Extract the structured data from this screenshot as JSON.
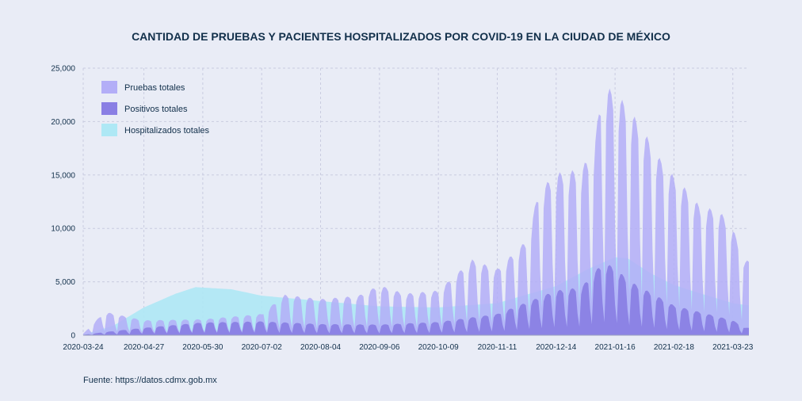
{
  "page": {
    "title": "CANTIDAD DE PRUEBAS Y PACIENTES HOSPITALIZADOS POR COVID-19 EN LA CIUDAD DE MÉXICO",
    "source": "Fuente: https://datos.cdmx.gob.mx"
  },
  "colors": {
    "background": "#e9ecf6",
    "grid": "#c9cbe0",
    "pruebas": "#b3aef7",
    "positivos": "#8a7fe4",
    "hospitalizados": "#aee8f5",
    "text": "#12304b"
  },
  "chart_data": {
    "type": "area",
    "title": "CANTIDAD DE PRUEBAS Y PACIENTES HOSPITALIZADOS POR COVID-19 EN LA CIUDAD DE MÉXICO",
    "xlabel": "",
    "ylabel": "",
    "x_range": [
      "2020-03-24",
      "2021-04-01"
    ],
    "ylim": [
      0,
      25000
    ],
    "grid": true,
    "legend_position": "top-left",
    "x_ticks": [
      "2020-03-24",
      "2020-04-27",
      "2020-05-30",
      "2020-07-02",
      "2020-08-04",
      "2020-09-06",
      "2020-10-09",
      "2020-11-11",
      "2020-12-14",
      "2021-01-16",
      "2021-02-18",
      "2021-03-23"
    ],
    "y_ticks": [
      0,
      5000,
      10000,
      15000,
      20000,
      25000
    ],
    "y_tick_labels": [
      "0",
      "5,000",
      "10,000",
      "15,000",
      "20,000",
      "25,000"
    ],
    "weekly_pattern": "values are daily; weekday peaks and weekend lows",
    "series": [
      {
        "name": "Pruebas totales",
        "color": "#b3aef7",
        "weekly_peaks": [
          {
            "date": "2020-03-24",
            "value": 150
          },
          {
            "date": "2020-04-05",
            "value": 2200
          },
          {
            "date": "2020-04-27",
            "value": 1400
          },
          {
            "date": "2020-05-30",
            "value": 1500
          },
          {
            "date": "2020-07-02",
            "value": 2000
          },
          {
            "date": "2020-07-15",
            "value": 3800
          },
          {
            "date": "2020-08-04",
            "value": 3400
          },
          {
            "date": "2020-08-25",
            "value": 3700
          },
          {
            "date": "2020-09-06",
            "value": 4700
          },
          {
            "date": "2020-09-20",
            "value": 3900
          },
          {
            "date": "2020-10-09",
            "value": 4200
          },
          {
            "date": "2020-10-28",
            "value": 7100
          },
          {
            "date": "2020-11-11",
            "value": 6200
          },
          {
            "date": "2020-11-28",
            "value": 9000
          },
          {
            "date": "2020-12-04",
            "value": 13500
          },
          {
            "date": "2020-12-14",
            "value": 15200
          },
          {
            "date": "2020-12-28",
            "value": 15600
          },
          {
            "date": "2021-01-04",
            "value": 17500
          },
          {
            "date": "2021-01-09",
            "value": 23500
          },
          {
            "date": "2021-01-16",
            "value": 22800
          },
          {
            "date": "2021-01-23",
            "value": 21500
          },
          {
            "date": "2021-02-01",
            "value": 19200
          },
          {
            "date": "2021-02-10",
            "value": 16600
          },
          {
            "date": "2021-02-18",
            "value": 14900
          },
          {
            "date": "2021-02-26",
            "value": 13500
          },
          {
            "date": "2021-03-05",
            "value": 12000
          },
          {
            "date": "2021-03-15",
            "value": 11800
          },
          {
            "date": "2021-03-23",
            "value": 10000
          },
          {
            "date": "2021-03-30",
            "value": 7000
          }
        ]
      },
      {
        "name": "Positivos totales",
        "color": "#8a7fe4",
        "weekly_peaks": [
          {
            "date": "2020-03-24",
            "value": 30
          },
          {
            "date": "2020-04-05",
            "value": 300
          },
          {
            "date": "2020-04-27",
            "value": 700
          },
          {
            "date": "2020-05-30",
            "value": 1200
          },
          {
            "date": "2020-07-02",
            "value": 1300
          },
          {
            "date": "2020-08-04",
            "value": 1050
          },
          {
            "date": "2020-09-06",
            "value": 1000
          },
          {
            "date": "2020-10-09",
            "value": 1250
          },
          {
            "date": "2020-11-11",
            "value": 2000
          },
          {
            "date": "2020-12-14",
            "value": 4200
          },
          {
            "date": "2020-12-28",
            "value": 4500
          },
          {
            "date": "2021-01-09",
            "value": 6800
          },
          {
            "date": "2021-01-16",
            "value": 6400
          },
          {
            "date": "2021-01-23",
            "value": 5200
          },
          {
            "date": "2021-02-18",
            "value": 2800
          },
          {
            "date": "2021-03-23",
            "value": 1400
          },
          {
            "date": "2021-03-30",
            "value": 700
          }
        ]
      },
      {
        "name": "Hospitalizados totales",
        "color": "#aee8f5",
        "points": [
          {
            "date": "2020-03-24",
            "value": 50
          },
          {
            "date": "2020-04-10",
            "value": 900
          },
          {
            "date": "2020-04-27",
            "value": 2600
          },
          {
            "date": "2020-05-15",
            "value": 3900
          },
          {
            "date": "2020-05-26",
            "value": 4500
          },
          {
            "date": "2020-06-15",
            "value": 4300
          },
          {
            "date": "2020-07-02",
            "value": 3700
          },
          {
            "date": "2020-08-04",
            "value": 3200
          },
          {
            "date": "2020-09-06",
            "value": 2700
          },
          {
            "date": "2020-10-09",
            "value": 2600
          },
          {
            "date": "2020-11-11",
            "value": 3000
          },
          {
            "date": "2020-12-14",
            "value": 4600
          },
          {
            "date": "2021-01-01",
            "value": 6200
          },
          {
            "date": "2021-01-16",
            "value": 7300
          },
          {
            "date": "2021-01-23",
            "value": 7200
          },
          {
            "date": "2021-02-05",
            "value": 5800
          },
          {
            "date": "2021-02-18",
            "value": 4700
          },
          {
            "date": "2021-03-05",
            "value": 3900
          },
          {
            "date": "2021-03-23",
            "value": 3000
          },
          {
            "date": "2021-03-31",
            "value": 2800
          }
        ]
      }
    ]
  }
}
